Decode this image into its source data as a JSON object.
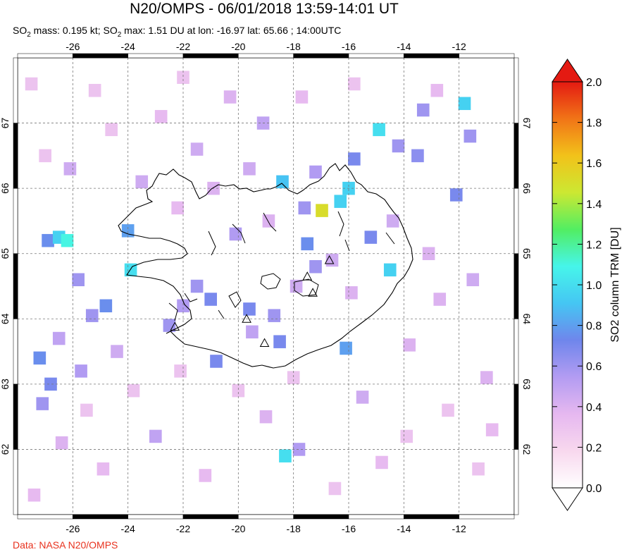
{
  "header": {
    "title": "N20/OMPS - 06/01/2018 13:59-14:01 UT",
    "subtitle": {
      "p1": "SO",
      "s1": "2",
      "p2": " mass: 0.195 kt; SO",
      "s2": "2",
      "p3": " max: 1.51 DU at lon: -16.97 lat: 65.66 ; 14:00UTC"
    }
  },
  "credit": "Data: NASA N20/OMPS",
  "chart_data": {
    "type": "heatmap",
    "xlim": [
      -28,
      -10
    ],
    "ylim": [
      61,
      68
    ],
    "x_ticks": [
      -26,
      -24,
      -22,
      -20,
      -18,
      -16,
      -14,
      -12
    ],
    "y_ticks": [
      62,
      63,
      64,
      65,
      66,
      67
    ],
    "x_tick_labels": [
      "-26",
      "-24",
      "-22",
      "-20",
      "-18",
      "-16",
      "-14",
      "-12"
    ],
    "y_tick_labels": [
      "62",
      "63",
      "64",
      "65",
      "66",
      "67"
    ],
    "grid": true,
    "max_point": {
      "lon": -16.97,
      "lat": 65.66,
      "value": 1.51
    },
    "cells": [
      [
        -26.9,
        65.2,
        0.75
      ],
      [
        -26.5,
        65.25,
        0.95
      ],
      [
        -26.2,
        65.2,
        1.1
      ],
      [
        -25.8,
        64.6,
        0.6
      ],
      [
        -25.3,
        64.05,
        0.6
      ],
      [
        -24.8,
        64.2,
        0.75
      ],
      [
        -24.0,
        65.35,
        0.8
      ],
      [
        -23.9,
        64.75,
        1.0
      ],
      [
        -22.5,
        63.9,
        0.6
      ],
      [
        -22.0,
        64.2,
        0.55
      ],
      [
        -21.5,
        64.5,
        0.6
      ],
      [
        -21.0,
        64.3,
        0.7
      ],
      [
        -20.8,
        63.35,
        0.7
      ],
      [
        -20.1,
        65.3,
        0.55
      ],
      [
        -19.6,
        64.15,
        0.7
      ],
      [
        -19.5,
        63.8,
        0.5
      ],
      [
        -18.7,
        64.05,
        0.6
      ],
      [
        -18.5,
        63.65,
        0.7
      ],
      [
        -18.4,
        66.1,
        0.9
      ],
      [
        -17.6,
        65.7,
        0.6
      ],
      [
        -17.2,
        66.25,
        0.55
      ],
      [
        -16.97,
        65.66,
        1.51
      ],
      [
        -17.5,
        65.15,
        0.75
      ],
      [
        -16.3,
        65.8,
        0.95
      ],
      [
        -16.0,
        66.0,
        0.95
      ],
      [
        -15.8,
        66.45,
        0.7
      ],
      [
        -15.2,
        65.25,
        0.7
      ],
      [
        -14.9,
        66.9,
        1.0
      ],
      [
        -14.2,
        66.65,
        0.6
      ],
      [
        -14.5,
        64.75,
        0.95
      ],
      [
        -16.1,
        63.55,
        0.8
      ],
      [
        -17.2,
        64.8,
        0.6
      ],
      [
        -13.5,
        66.5,
        0.65
      ],
      [
        -12.1,
        65.9,
        0.7
      ],
      [
        -13.3,
        67.2,
        0.6
      ],
      [
        -11.8,
        67.3,
        0.95
      ],
      [
        -11.6,
        66.8,
        0.6
      ],
      [
        -27.2,
        63.4,
        0.75
      ],
      [
        -26.8,
        63.0,
        0.7
      ],
      [
        -27.1,
        62.7,
        0.6
      ],
      [
        -26.5,
        63.7,
        0.5
      ],
      [
        -25.7,
        63.2,
        0.55
      ],
      [
        -24.4,
        63.5,
        0.45
      ],
      [
        -23.0,
        62.2,
        0.5
      ],
      [
        -18.3,
        61.9,
        1.0
      ],
      [
        -17.8,
        62.0,
        0.55
      ],
      [
        -19.0,
        62.5,
        0.4
      ],
      [
        -15.5,
        62.8,
        0.45
      ],
      [
        -13.8,
        63.6,
        0.4
      ],
      [
        -12.7,
        64.3,
        0.4
      ],
      [
        -11.5,
        64.6,
        0.45
      ],
      [
        -11.0,
        63.1,
        0.4
      ],
      [
        -10.8,
        62.3,
        0.35
      ],
      [
        -21.5,
        66.6,
        0.45
      ],
      [
        -20.3,
        67.4,
        0.4
      ],
      [
        -19.1,
        67.0,
        0.5
      ],
      [
        -22.8,
        67.1,
        0.35
      ],
      [
        -24.6,
        66.9,
        0.3
      ],
      [
        -26.1,
        66.3,
        0.45
      ],
      [
        -27.5,
        67.6,
        0.3
      ],
      [
        -23.5,
        66.1,
        0.45
      ],
      [
        -22.2,
        65.7,
        0.35
      ],
      [
        -20.9,
        66.0,
        0.4
      ],
      [
        -19.6,
        66.3,
        0.45
      ],
      [
        -18.9,
        65.5,
        0.4
      ],
      [
        -17.9,
        64.5,
        0.45
      ],
      [
        -16.6,
        64.9,
        0.45
      ],
      [
        -15.9,
        64.4,
        0.4
      ],
      [
        -14.4,
        65.5,
        0.45
      ],
      [
        -13.1,
        65.0,
        0.4
      ],
      [
        -12.4,
        62.6,
        0.3
      ],
      [
        -14.8,
        61.8,
        0.35
      ],
      [
        -16.5,
        61.4,
        0.3
      ],
      [
        -21.2,
        61.6,
        0.35
      ],
      [
        -24.9,
        61.7,
        0.35
      ],
      [
        -26.4,
        62.1,
        0.4
      ],
      [
        -27.4,
        61.3,
        0.35
      ],
      [
        -25.5,
        62.6,
        0.3
      ],
      [
        -23.8,
        62.9,
        0.3
      ],
      [
        -22.1,
        63.2,
        0.3
      ],
      [
        -20.0,
        62.9,
        0.3
      ],
      [
        -18.0,
        63.1,
        0.3
      ],
      [
        -13.9,
        62.2,
        0.3
      ],
      [
        -11.3,
        61.7,
        0.3
      ],
      [
        -12.8,
        67.5,
        0.35
      ],
      [
        -15.8,
        67.6,
        0.3
      ],
      [
        -17.7,
        67.4,
        0.35
      ],
      [
        -22.0,
        67.7,
        0.3
      ],
      [
        -25.2,
        67.5,
        0.3
      ],
      [
        -27.0,
        66.5,
        0.3
      ]
    ],
    "volcanoes": [
      [
        -17.5,
        64.65
      ],
      [
        -17.3,
        64.4
      ],
      [
        -16.7,
        64.9
      ],
      [
        -19.7,
        64.0
      ],
      [
        -22.3,
        63.88
      ],
      [
        -19.05,
        63.63
      ]
    ],
    "colorbar": {
      "label": "SO2 column TRM [DU]",
      "min": 0.0,
      "max": 2.0,
      "tick_values": [
        0.0,
        0.2,
        0.4,
        0.6,
        0.8,
        1.0,
        1.2,
        1.4,
        1.6,
        1.8,
        2.0
      ],
      "tick_labels": [
        "0.0",
        "0.2",
        "0.4",
        "0.6",
        "0.8",
        "1.0",
        "1.2",
        "1.4",
        "1.6",
        "1.8",
        "2.0"
      ],
      "colors": [
        "#ffffff",
        "#f8d8ee",
        "#e6b8f0",
        "#b39cf2",
        "#6f86ec",
        "#45c6f3",
        "#46f5ea",
        "#52ee62",
        "#cce832",
        "#f2c21a",
        "#f17417",
        "#e41a12"
      ]
    }
  }
}
